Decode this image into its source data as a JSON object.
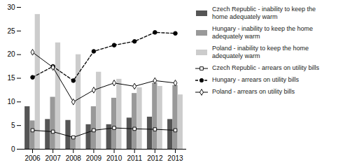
{
  "chart_data": {
    "type": "bar",
    "categories": [
      "2006",
      "2007",
      "2008",
      "2009",
      "2010",
      "2011",
      "2012",
      "2013"
    ],
    "series": [
      {
        "name": "Czech Republic - inability to keep the\nhome adequately warm",
        "type": "bar",
        "color": "#555555",
        "values": [
          9.0,
          6.3,
          6.1,
          5.2,
          5.2,
          6.6,
          6.8,
          6.3
        ]
      },
      {
        "name": "Hungary - inability to keep the home\nadequately warm",
        "type": "bar",
        "color": "#999999",
        "values": [
          6.0,
          11.0,
          2.5,
          9.0,
          10.8,
          11.8,
          14.0,
          13.5
        ]
      },
      {
        "name": "Poland - inability to keep the home\nadequately warm",
        "type": "bar",
        "color": "#cccccc",
        "values": [
          28.5,
          22.5,
          20.0,
          16.3,
          14.8,
          13.0,
          13.3,
          11.5
        ]
      },
      {
        "name": "Czech Republic - arrears on utility bills",
        "type": "line",
        "color": "black",
        "marker": "square_open",
        "line_style": "solid",
        "values": [
          4.0,
          3.7,
          2.5,
          4.0,
          4.5,
          4.3,
          4.2,
          4.0
        ]
      },
      {
        "name": "Hungary - arrears on utility bills",
        "type": "line",
        "color": "black",
        "marker": "circle",
        "line_style": "dashed",
        "values": [
          15.2,
          17.5,
          14.5,
          20.7,
          22.0,
          22.8,
          24.7,
          24.5
        ]
      },
      {
        "name": "Poland - arrears on utility bills",
        "type": "line",
        "color": "black",
        "marker": "diamond_open",
        "line_style": "solid",
        "values": [
          20.5,
          17.3,
          10.0,
          12.5,
          14.0,
          13.3,
          14.5,
          14.0
        ]
      }
    ],
    "ylim": [
      0,
      30
    ],
    "yticks": [
      0,
      5,
      10,
      15,
      20,
      25,
      30
    ],
    "grid": false,
    "legend": "right"
  }
}
